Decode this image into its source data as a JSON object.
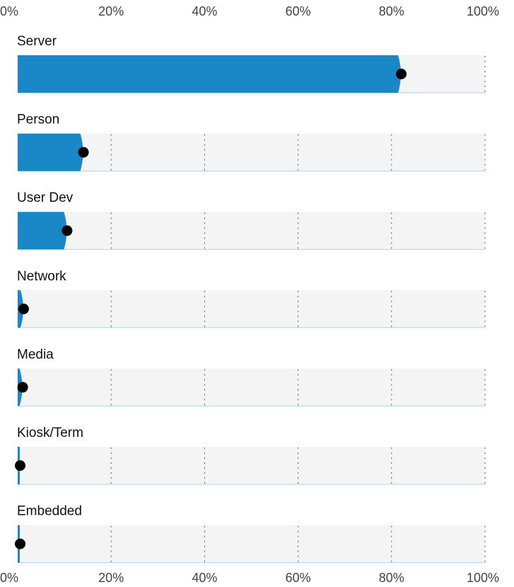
{
  "chart_data": {
    "type": "bar",
    "orientation": "horizontal",
    "categories": [
      "Server",
      "Person",
      "User Dev",
      "Network",
      "Media",
      "Kiosk/Term",
      "Embedded"
    ],
    "values": [
      82,
      14,
      10.5,
      1.2,
      1.0,
      0.3,
      0.3
    ],
    "unit": "%",
    "xlim": [
      0,
      100
    ],
    "x_ticks": [
      "0%",
      "20%",
      "40%",
      "60%",
      "80%",
      "100%"
    ],
    "x_tick_values": [
      0,
      20,
      40,
      60,
      80,
      100
    ],
    "axis_position": "top and bottom",
    "grid": "vertical dotted",
    "legend": "none",
    "colors": {
      "bar": "#1a87c7",
      "track": "#f4f4f4",
      "marker": "#000000",
      "grid": "#555555",
      "track_baseline": "#a9d4ee"
    }
  }
}
